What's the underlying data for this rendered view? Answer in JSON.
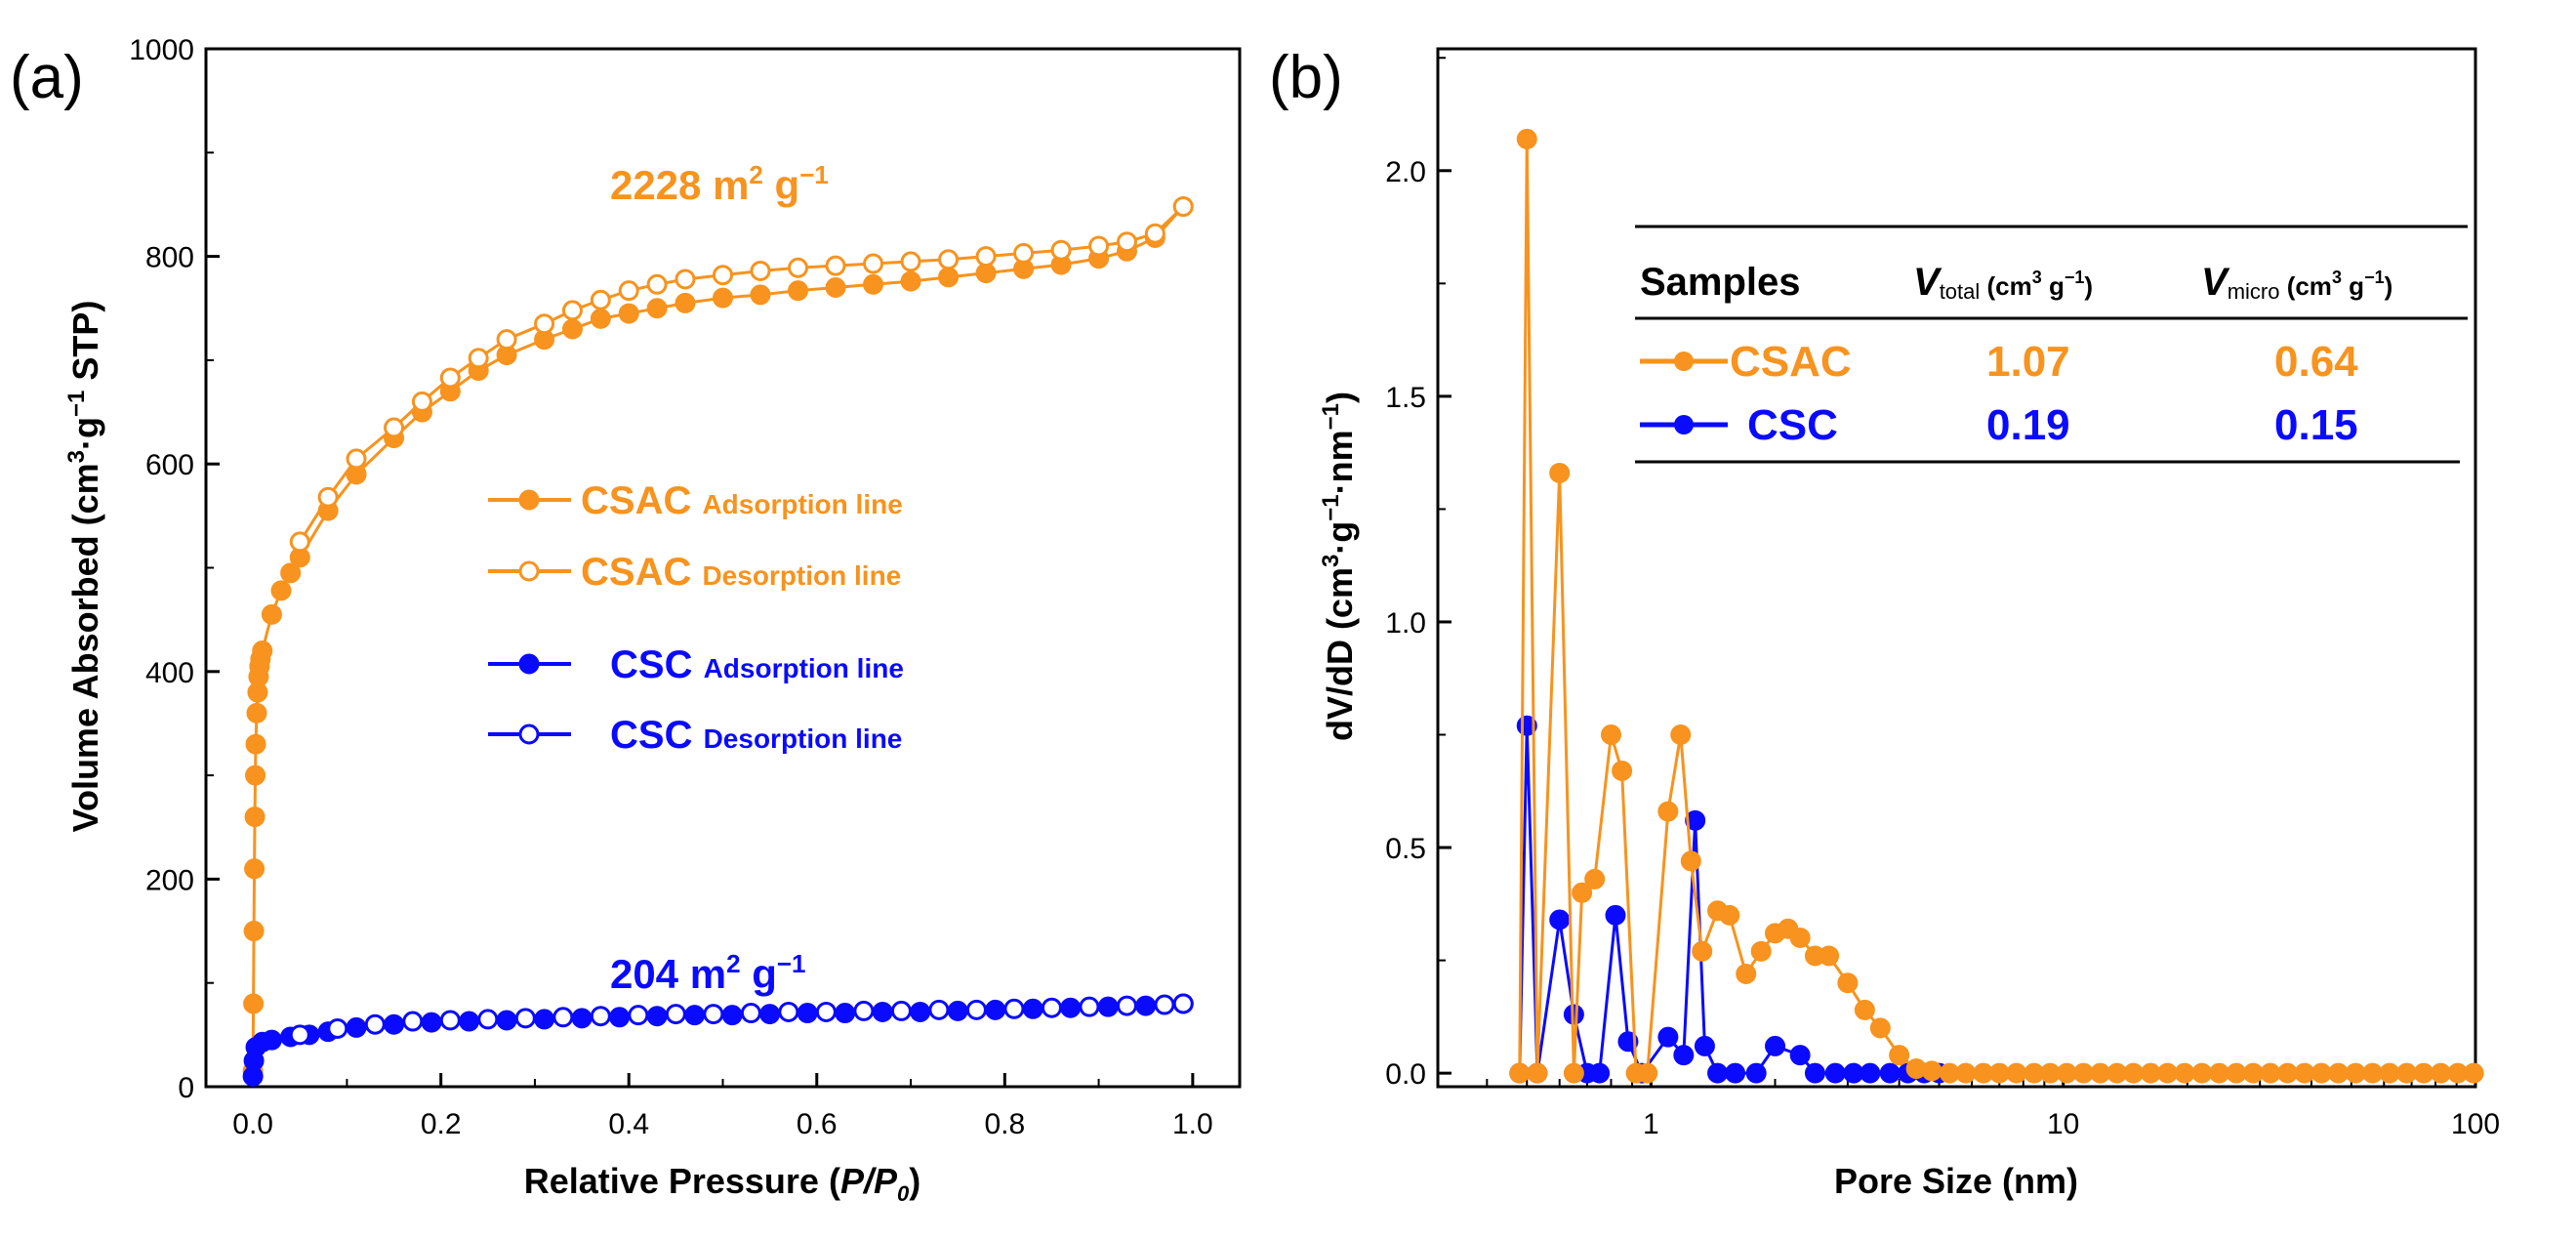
{
  "colors": {
    "csac": "#f7931e",
    "csc": "#0a0aff",
    "axis": "#000000"
  },
  "chart_data": [
    {
      "panel_label": "(a)",
      "type": "line",
      "xlabel": "Relative Pressure (P/P0)",
      "xlabel_parts": {
        "pre": "Relative Pressure (",
        "italic": "P/P",
        "sub": "0",
        "post": ")"
      },
      "ylabel": "Volume Absorbed (cm3·g−1 STP)",
      "ylabel_parts": {
        "pre": "Volume Absorbed (cm",
        "sup1": "3",
        "mid": "·g",
        "sup2": "−1",
        "post": " STP)"
      },
      "xlim": [
        -0.05,
        1.05
      ],
      "ylim": [
        0,
        1000
      ],
      "xticks": [
        "0.0",
        "0.2",
        "0.4",
        "0.6",
        "0.8",
        "1.0"
      ],
      "xtick_values": [
        0,
        0.2,
        0.4,
        0.6,
        0.8,
        1.0
      ],
      "yticks": [
        "0",
        "200",
        "400",
        "600",
        "800",
        "1000"
      ],
      "ytick_values": [
        0,
        200,
        400,
        600,
        800,
        1000
      ],
      "annotations": [
        {
          "text": "2228 m",
          "sup": "2",
          "tail": " g",
          "sup2": "−1",
          "series": "csac",
          "x": 0.38,
          "y": 855
        },
        {
          "text": "204 m",
          "sup": "2",
          "tail": " g",
          "sup2": "−1",
          "series": "csc",
          "x": 0.38,
          "y": 95
        }
      ],
      "legend": [
        {
          "sample": "CSAC",
          "label": "Adsorption line",
          "series": "csac",
          "filled": true
        },
        {
          "sample": "CSAC",
          "label": "Desorption line",
          "series": "csac",
          "filled": false
        },
        {
          "sample": "CSC",
          "label": "Adsorption line",
          "series": "csc",
          "filled": true
        },
        {
          "sample": "CSC",
          "label": "Desorption line",
          "series": "csc",
          "filled": false
        }
      ],
      "series": [
        {
          "name": "CSAC Adsorption line",
          "color": "csac",
          "filled": true,
          "x": [
            0,
            0.0005,
            0.001,
            0.0015,
            0.002,
            0.0025,
            0.003,
            0.004,
            0.005,
            0.006,
            0.007,
            0.008,
            0.01,
            0.02,
            0.03,
            0.04,
            0.05,
            0.08,
            0.11,
            0.15,
            0.18,
            0.21,
            0.24,
            0.27,
            0.31,
            0.34,
            0.37,
            0.4,
            0.43,
            0.46,
            0.5,
            0.54,
            0.58,
            0.62,
            0.66,
            0.7,
            0.74,
            0.78,
            0.82,
            0.86,
            0.9,
            0.93,
            0.96,
            0.99
          ],
          "y": [
            15,
            80,
            150,
            210,
            260,
            300,
            330,
            360,
            380,
            395,
            405,
            412,
            420,
            455,
            478,
            495,
            510,
            555,
            590,
            625,
            650,
            670,
            690,
            705,
            720,
            730,
            740,
            745,
            750,
            755,
            760,
            763,
            767,
            770,
            773,
            776,
            780,
            784,
            788,
            792,
            798,
            805,
            818,
            848
          ]
        },
        {
          "name": "CSAC Desorption line",
          "color": "csac",
          "filled": false,
          "x": [
            0.05,
            0.08,
            0.11,
            0.15,
            0.18,
            0.21,
            0.24,
            0.27,
            0.31,
            0.34,
            0.37,
            0.4,
            0.43,
            0.46,
            0.5,
            0.54,
            0.58,
            0.62,
            0.66,
            0.7,
            0.74,
            0.78,
            0.82,
            0.86,
            0.9,
            0.93,
            0.96,
            0.99
          ],
          "y": [
            525,
            568,
            605,
            635,
            660,
            683,
            702,
            720,
            735,
            748,
            758,
            767,
            773,
            778,
            782,
            786,
            789,
            791,
            793,
            795,
            797,
            800,
            803,
            806,
            810,
            814,
            822,
            848
          ]
        },
        {
          "name": "CSC Adsorption line",
          "color": "csc",
          "filled": true,
          "x": [
            0,
            0.001,
            0.003,
            0.01,
            0.02,
            0.04,
            0.06,
            0.08,
            0.11,
            0.15,
            0.19,
            0.23,
            0.27,
            0.31,
            0.35,
            0.39,
            0.43,
            0.47,
            0.51,
            0.55,
            0.59,
            0.63,
            0.67,
            0.71,
            0.75,
            0.79,
            0.83,
            0.87,
            0.91,
            0.95,
            0.99
          ],
          "y": [
            10,
            25,
            38,
            43,
            45,
            48,
            50,
            53,
            57,
            60,
            62,
            63,
            64,
            65,
            66,
            67,
            68,
            69,
            69,
            70,
            71,
            71,
            72,
            72,
            73,
            74,
            75,
            76,
            77,
            78,
            80
          ]
        },
        {
          "name": "CSC Desorption line",
          "color": "csc",
          "filled": false,
          "x": [
            0.05,
            0.09,
            0.13,
            0.17,
            0.21,
            0.25,
            0.29,
            0.33,
            0.37,
            0.41,
            0.45,
            0.49,
            0.53,
            0.57,
            0.61,
            0.65,
            0.69,
            0.73,
            0.77,
            0.81,
            0.85,
            0.89,
            0.93,
            0.97,
            0.99
          ],
          "y": [
            50,
            56,
            60,
            63,
            64,
            65,
            66,
            67,
            68,
            69,
            70,
            70,
            71,
            72,
            72,
            73,
            73,
            74,
            74,
            75,
            76,
            77,
            78,
            79,
            80
          ]
        }
      ]
    },
    {
      "panel_label": "(b)",
      "type": "line",
      "xscale": "log",
      "xlabel": "Pore Size (nm)",
      "ylabel": "dV/dD (cm3·g−1·nm−1)",
      "ylabel_parts": {
        "pre": "dV/dD (cm",
        "sup1": "3",
        "mid": "·g",
        "sup2": "−1",
        "mid2": "·nm",
        "sup3": "−1",
        "post": ")"
      },
      "xlim": [
        0.304,
        100
      ],
      "ylim": [
        -0.03,
        2.27
      ],
      "xticks": [
        "1",
        "10",
        "100"
      ],
      "xtick_values": [
        1,
        10,
        100
      ],
      "yticks": [
        "0.0",
        "0.5",
        "1.0",
        "1.5",
        "2.0"
      ],
      "ytick_values": [
        0,
        0.5,
        1.0,
        1.5,
        2.0
      ],
      "table": {
        "headers": {
          "samples": "Samples",
          "vtotal": "V",
          "vtotal_sub": "total",
          "vmicro": "V",
          "vmicro_sub": "micro",
          "unit": " (cm",
          "unit_sup": "3",
          "unit_g": " g",
          "unit_sup2": "−1",
          "unit_close": ")"
        },
        "rows": [
          {
            "sample": "CSAC",
            "series": "csac",
            "vtotal": "1.07",
            "vmicro": "0.64"
          },
          {
            "sample": "CSC",
            "series": "csc",
            "vtotal": "0.19",
            "vmicro": "0.15"
          }
        ]
      },
      "series": [
        {
          "name": "CSAC",
          "color": "csac",
          "x": [
            0.48,
            0.5,
            0.53,
            0.6,
            0.65,
            0.68,
            0.73,
            0.8,
            0.85,
            0.92,
            0.98,
            1.1,
            1.18,
            1.25,
            1.33,
            1.45,
            1.55,
            1.7,
            1.85,
            2.0,
            2.15,
            2.3,
            2.5,
            2.7,
            3.0,
            3.3,
            3.6,
            4.0,
            4.4,
            4.8,
            5.3,
            5.8,
            6.4,
            7.0,
            7.7,
            8.5,
            9.3,
            10.2,
            11.2,
            12.3,
            13.5,
            14.8,
            16.3,
            17.9,
            19.7,
            21.7,
            23.9,
            26.3,
            28.9,
            31.8,
            35,
            38.5,
            42.3,
            46.5,
            51.2,
            56.3,
            61.9,
            68.1,
            74.9,
            82.4,
            90.6,
            99
          ],
          "y": [
            0,
            2.07,
            0,
            1.33,
            0,
            0.4,
            0.43,
            0.75,
            0.67,
            0,
            0,
            0.58,
            0.75,
            0.47,
            0.27,
            0.36,
            0.35,
            0.22,
            0.27,
            0.31,
            0.32,
            0.3,
            0.26,
            0.26,
            0.2,
            0.14,
            0.1,
            0.04,
            0.01,
            0.005,
            0,
            0,
            0,
            0,
            0,
            0,
            0,
            0,
            0,
            0,
            0,
            0,
            0,
            0,
            0,
            0,
            0,
            0,
            0,
            0,
            0,
            0,
            0,
            0,
            0,
            0,
            0,
            0,
            0,
            0,
            0,
            0
          ]
        },
        {
          "name": "CSC",
          "color": "csc",
          "x": [
            0.48,
            0.5,
            0.53,
            0.6,
            0.65,
            0.7,
            0.75,
            0.82,
            0.88,
            0.95,
            1.1,
            1.2,
            1.28,
            1.35,
            1.45,
            1.6,
            1.8,
            2.0,
            2.3,
            2.5,
            2.8,
            3.1,
            3.4,
            3.8,
            4.2,
            4.6,
            5.0
          ],
          "y": [
            0,
            0.77,
            0,
            0.34,
            0.13,
            0,
            0,
            0.35,
            0.07,
            0,
            0.08,
            0.04,
            0.56,
            0.06,
            0,
            0,
            0,
            0.06,
            0.04,
            0,
            0,
            0,
            0,
            0,
            0,
            0,
            0
          ]
        }
      ]
    }
  ]
}
